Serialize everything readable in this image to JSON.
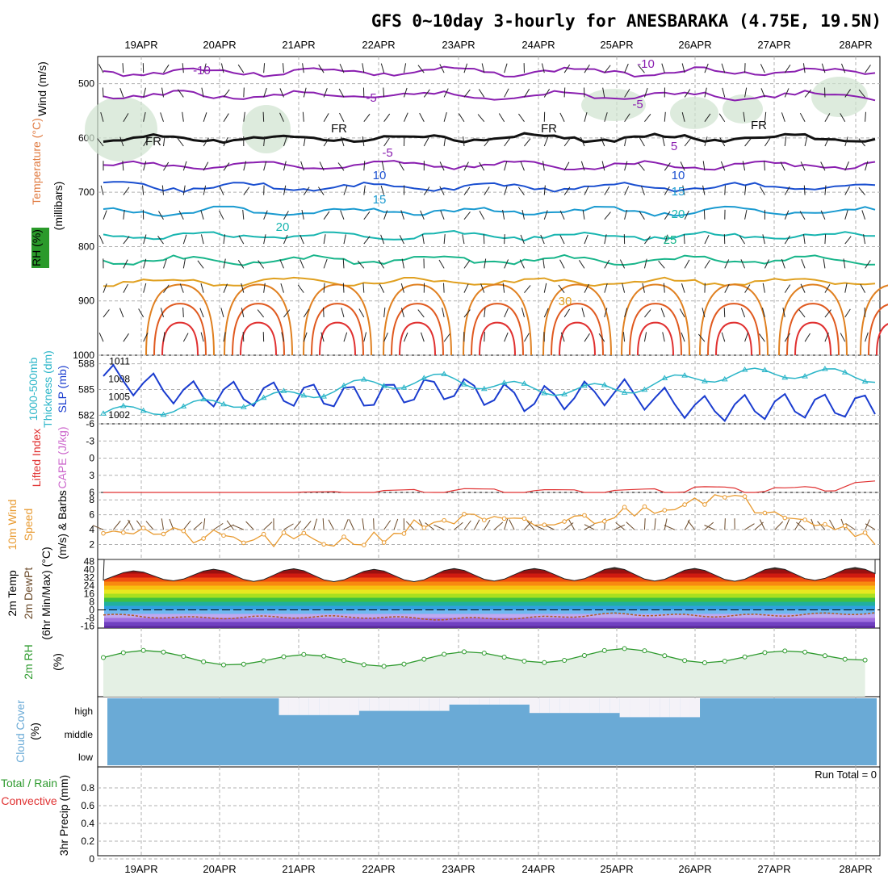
{
  "title": "GFS 0~10day 3-hourly for ANESBARAKA (4.75E, 19.5N)",
  "dates": [
    "19APR",
    "20APR",
    "21APR",
    "22APR",
    "23APR",
    "24APR",
    "25APR",
    "26APR",
    "27APR",
    "28APR"
  ],
  "run_total": "Run Total = 0",
  "colors": {
    "wind_blue": "#1a3ccf",
    "thick_cyan": "#2ab5c8",
    "rh_green": "#2e9a2e",
    "wind10_orange": "#e89a30",
    "cape_purple": "#cc66cc",
    "li_red": "#e03030",
    "cloud_blue": "#6aaad6",
    "cloud_clear": "#f4f2f8",
    "barb_brown": "#6b4a2a"
  },
  "labels": {
    "p1": [
      "Wind (m/s)",
      "Temperature (°C)",
      "(millibars)",
      "RH (%)"
    ],
    "p2": [
      "1000-500mb",
      "Thickness (dm)",
      "SLP (mb)"
    ],
    "p3": [
      "Lifted Index",
      "CAPE (J/kg)"
    ],
    "p4": [
      "10m Wind",
      "Speed",
      "(m/s) & Barbs"
    ],
    "p5": [
      "2m Temp",
      "2m DewPt",
      "(6hr Min/Max) (°C)"
    ],
    "p6": [
      "2m RH",
      "(%)"
    ],
    "p7": [
      "Cloud Cover",
      "(%)"
    ],
    "p8": [
      "Total / Rain",
      "Convective",
      "3hr Precip (mm)"
    ]
  },
  "panel1_ticks": [
    "500",
    "600",
    "700",
    "800",
    "900",
    "1000"
  ],
  "panel2_ticks_left": [
    "588",
    "585",
    "582"
  ],
  "panel2_ticks_right": [
    "1011",
    "1008",
    "1005",
    "1002"
  ],
  "panel3_ticks": [
    "-6",
    "-3",
    "0",
    "3",
    "6"
  ],
  "panel4_ticks": [
    "8",
    "6",
    "4",
    "2"
  ],
  "panel5_ticks": [
    "48",
    "40",
    "32",
    "24",
    "16",
    "8",
    "0",
    "-8",
    "-16"
  ],
  "panel7_ticks": [
    "high",
    "middle",
    "low"
  ],
  "panel8_ticks": [
    "0.8",
    "0.6",
    "0.4",
    "0.2",
    "0"
  ],
  "contour_labels": [
    "-10",
    "-5",
    "FR",
    "-5",
    "10",
    "15",
    "20",
    "25",
    "30",
    "-10",
    "-5",
    "5",
    "10",
    "15",
    "20",
    "25",
    "FR",
    "FR"
  ],
  "chart_data": [
    {
      "type": "line",
      "title": "Temperature (°C) isotherms by pressure level",
      "xlabel": "",
      "ylabel": "(millibars)",
      "ylim": [
        1000,
        450
      ],
      "series": [
        {
          "name": "-10",
          "level_mb": 478
        },
        {
          "name": "-5",
          "level_mb": 522
        },
        {
          "name": "FR",
          "level_mb": 600
        },
        {
          "name": "5",
          "level_mb": 650
        },
        {
          "name": "10",
          "level_mb": 690
        },
        {
          "name": "15",
          "level_mb": 735
        },
        {
          "name": "20",
          "level_mb": 780
        },
        {
          "name": "25",
          "level_mb": 825
        },
        {
          "name": "30",
          "level_mb": 865
        }
      ]
    },
    {
      "type": "line",
      "title": "1000-500mb Thickness (dm) and SLP (mb)",
      "x": [
        "19APR",
        "20APR",
        "21APR",
        "22APR",
        "23APR",
        "24APR",
        "25APR",
        "26APR",
        "27APR",
        "28APR"
      ],
      "series": [
        {
          "name": "SLP (mb)",
          "values": [
            1008.5,
            1005.5,
            1005.5,
            1005,
            1006.5,
            1004.5,
            1006,
            1003,
            1003.5,
            1003.5
          ]
        },
        {
          "name": "Thickness (dm)",
          "values": [
            582.2,
            583.0,
            584.0,
            585.5,
            586.2,
            585.0,
            585.0,
            586.5,
            587.0,
            586.5
          ]
        }
      ],
      "ylim_left": [
        581,
        589
      ],
      "ylim_right": [
        1000.5,
        1012
      ]
    },
    {
      "type": "line",
      "title": "Lifted Index / CAPE (J/kg)",
      "x": [
        "19APR",
        "20APR",
        "21APR",
        "22APR",
        "23APR",
        "24APR",
        "25APR",
        "26APR",
        "27APR",
        "28APR"
      ],
      "series": [
        {
          "name": "Lifted Index",
          "values": [
            6,
            6,
            6,
            5.8,
            5.3,
            5.5,
            5.6,
            5.0,
            5.2,
            4.0
          ]
        }
      ],
      "ylim": [
        6,
        -6
      ]
    },
    {
      "type": "line",
      "title": "10m Wind Speed (m/s)",
      "x": [
        "19APR",
        "20APR",
        "21APR",
        "22APR",
        "23APR",
        "24APR",
        "25APR",
        "26APR",
        "27APR",
        "28APR"
      ],
      "series": [
        {
          "name": "Speed",
          "values": [
            4.5,
            3.0,
            2.5,
            2.5,
            5.5,
            4.5,
            6.0,
            8.5,
            6.5,
            3.0
          ]
        }
      ],
      "ylim": [
        0,
        9
      ]
    },
    {
      "type": "line",
      "title": "2m Temp / 2m DewPt (°C)",
      "x": [
        "19APR",
        "20APR",
        "21APR",
        "22APR",
        "23APR",
        "24APR",
        "25APR",
        "26APR",
        "27APR",
        "28APR"
      ],
      "series": [
        {
          "name": "2m Temp max",
          "values": [
            38,
            40,
            41,
            40,
            41,
            41,
            42,
            41,
            42,
            42
          ]
        },
        {
          "name": "2m Temp min",
          "values": [
            28,
            29,
            28,
            28,
            28,
            29,
            29,
            28,
            29,
            30
          ]
        },
        {
          "name": "2m DewPt",
          "values": [
            -5,
            -8,
            -7,
            -7,
            -9,
            -8,
            -4,
            -6,
            -5,
            -3
          ]
        }
      ],
      "ylim": [
        -18,
        50
      ]
    },
    {
      "type": "line",
      "title": "2m RH (%)",
      "x": [
        "19APR",
        "20APR",
        "21APR",
        "22APR",
        "23APR",
        "24APR",
        "25APR",
        "26APR",
        "27APR",
        "28APR"
      ],
      "series": [
        {
          "name": "2m RH",
          "values": [
            68,
            70,
            62,
            64,
            66,
            70,
            72,
            70,
            68,
            75
          ]
        }
      ],
      "ylim": [
        0,
        100
      ]
    },
    {
      "type": "area",
      "title": "Cloud Cover (%)",
      "x": [
        "19APR",
        "20APR",
        "21APR",
        "22APR",
        "23APR",
        "24APR",
        "25APR",
        "26APR",
        "27APR",
        "28APR"
      ],
      "series": [
        {
          "name": "high",
          "values": [
            100,
            100,
            20,
            40,
            70,
            30,
            10,
            100,
            100,
            50
          ]
        },
        {
          "name": "middle",
          "values": [
            100,
            100,
            100,
            100,
            100,
            100,
            100,
            100,
            100,
            100
          ]
        },
        {
          "name": "low",
          "values": [
            100,
            100,
            100,
            100,
            100,
            100,
            100,
            100,
            100,
            100
          ]
        }
      ]
    },
    {
      "type": "bar",
      "title": "3hr Precip (mm)",
      "categories": [
        "19APR",
        "20APR",
        "21APR",
        "22APR",
        "23APR",
        "24APR",
        "25APR",
        "26APR",
        "27APR",
        "28APR"
      ],
      "values": [
        0,
        0,
        0,
        0,
        0,
        0,
        0,
        0,
        0,
        0
      ],
      "ylim": [
        0,
        1
      ]
    }
  ]
}
